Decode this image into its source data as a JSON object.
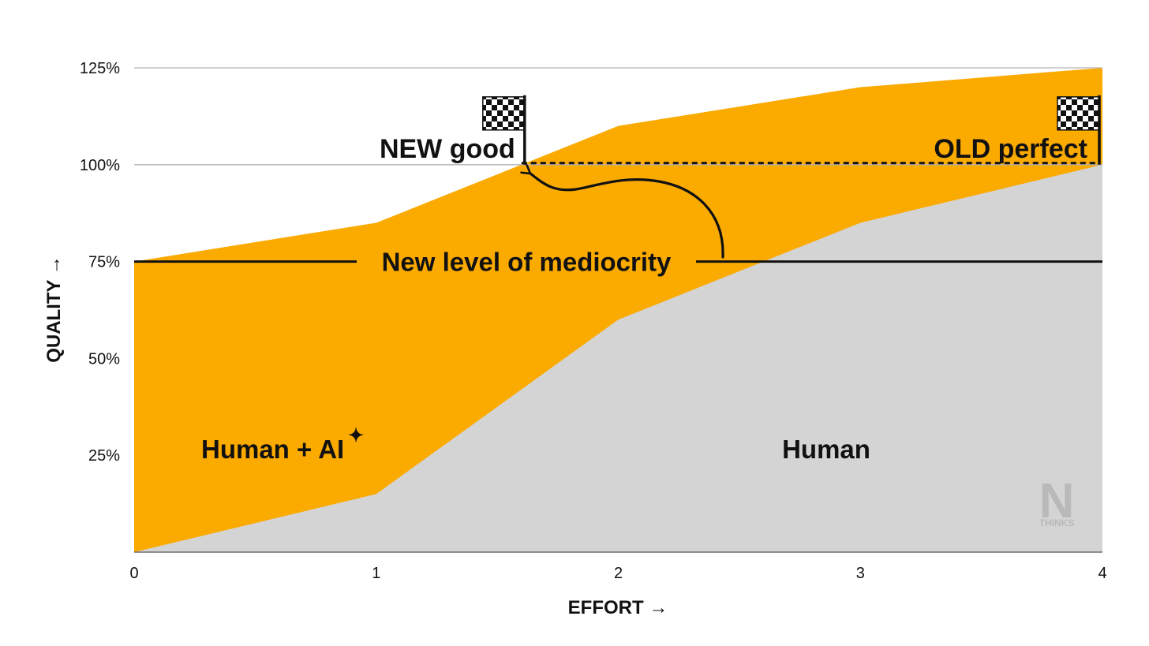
{
  "chart_data": {
    "type": "area",
    "xlabel": "EFFORT →",
    "ylabel": "QUALITY →",
    "x": [
      0,
      1,
      2,
      3,
      4
    ],
    "xlim": [
      0,
      4
    ],
    "ylim": [
      0,
      125
    ],
    "x_ticks": [
      "0",
      "1",
      "2",
      "3",
      "4"
    ],
    "y_ticks": [
      {
        "value": 25,
        "label": "25%"
      },
      {
        "value": 50,
        "label": "50%"
      },
      {
        "value": 75,
        "label": "75%"
      },
      {
        "value": 100,
        "label": "100%"
      },
      {
        "value": 125,
        "label": "125%"
      }
    ],
    "grid": true,
    "series": [
      {
        "name": "Human + AI",
        "values": [
          75,
          85,
          110,
          120,
          125
        ],
        "color": "#FBAA00"
      },
      {
        "name": "Human",
        "values": [
          0,
          15,
          60,
          85,
          100
        ],
        "color": "#D4D4D4"
      }
    ],
    "annotations": {
      "mediocrity": {
        "label": "New level of mediocrity",
        "y": 75
      },
      "new_good": {
        "label": "NEW good",
        "x": 1.6,
        "y": 100
      },
      "old_perfect": {
        "label": "OLD perfect",
        "x": 4,
        "y": 100
      },
      "human_ai_label": "Human + AI",
      "human_label": "Human",
      "sparkle": "✦"
    },
    "logo": {
      "letter": "N",
      "word": "THINKS"
    }
  }
}
